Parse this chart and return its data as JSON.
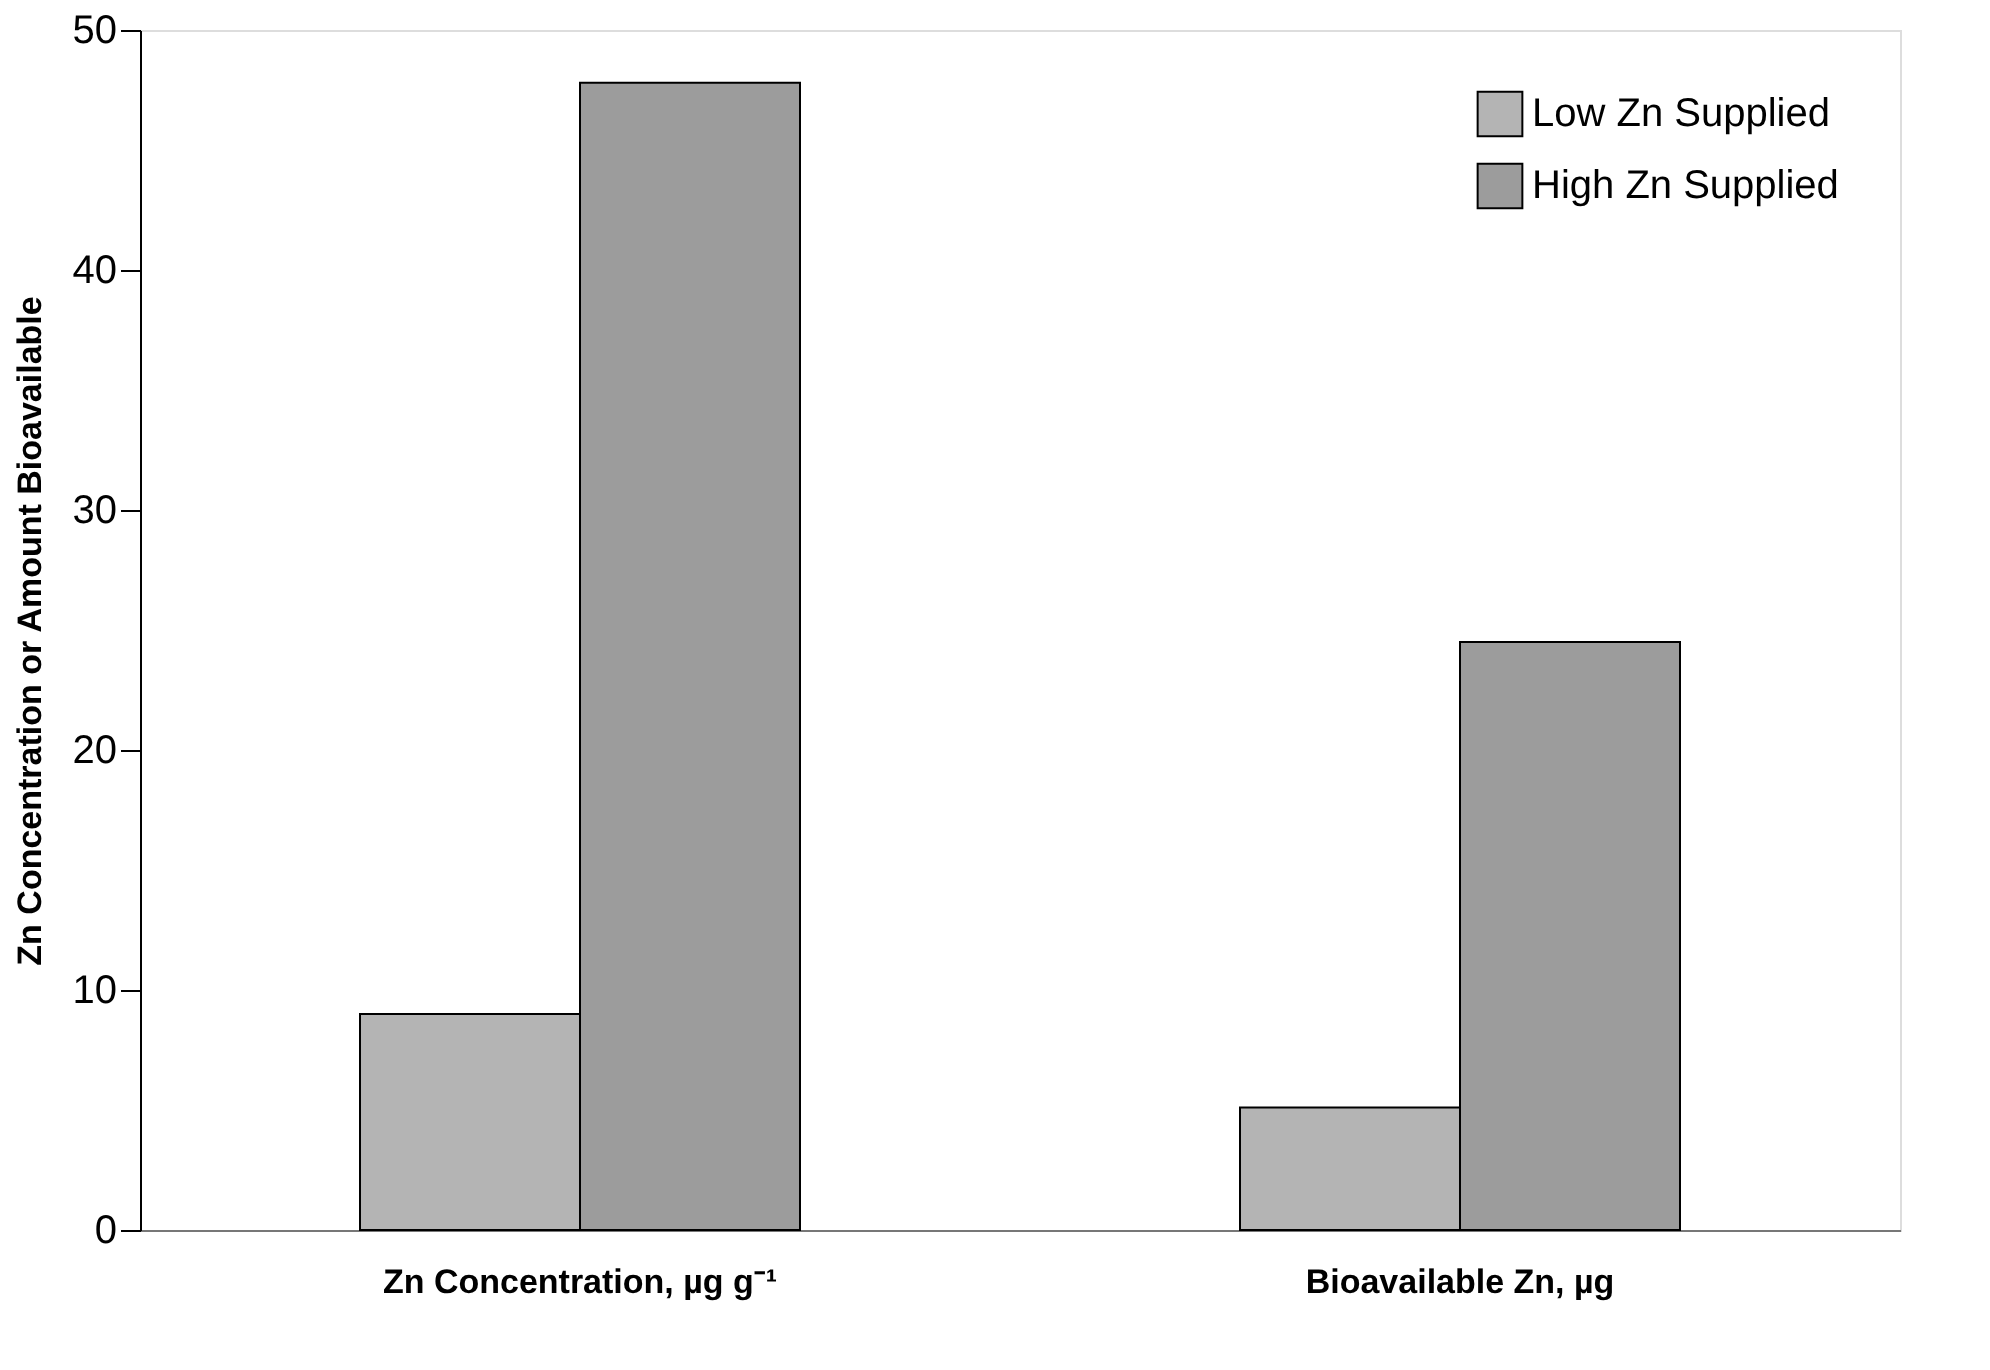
{
  "chart_data": {
    "type": "bar",
    "ylabel": "Zn Concentration  or Amount Bioavailable",
    "categories": [
      "Zn Concentration, µg g⁻¹",
      "Bioavailable Zn, µg"
    ],
    "series": [
      {
        "name": "Low Zn Supplied",
        "color": "#b4b4b4",
        "values": [
          9.0,
          5.1
        ]
      },
      {
        "name": "High Zn Supplied",
        "color": "#9c9c9c",
        "values": [
          47.8,
          24.5
        ]
      }
    ],
    "ylim": [
      0,
      50
    ],
    "yticks": [
      0,
      10,
      20,
      30,
      40,
      50
    ],
    "grid": false,
    "legend": "top right"
  }
}
